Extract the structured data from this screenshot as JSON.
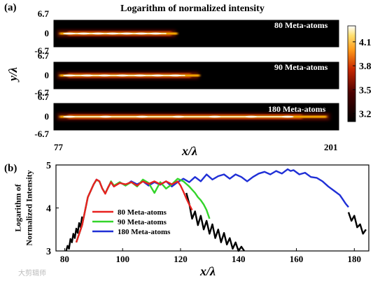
{
  "panel_a": {
    "label": "(a)",
    "title": "Logarithm of normalized intensity",
    "ylabel": "y/λ",
    "xlabel": "x/λ",
    "x_ticks": [
      "77",
      "201"
    ],
    "y_ticks": [
      "6.7",
      "0",
      "-6.7"
    ],
    "colorbar_ticks": [
      "4.1",
      "3.8",
      "3.5",
      "3.2"
    ],
    "strips": [
      {
        "label": "80 Meta-atoms",
        "x_end": 130
      },
      {
        "label": "90 Meta-atoms",
        "x_end": 140
      },
      {
        "label": "180 Meta-atoms",
        "x_end": 197
      }
    ]
  },
  "panel_b": {
    "label": "(b)",
    "ylabel_line1": "Logarithm of",
    "ylabel_line2": "Normalized Intensity",
    "xlabel": "x/λ",
    "watermark": "大剪辑师"
  },
  "colors": {
    "red": "#e8211f",
    "green": "#33d42a",
    "blue": "#1f2fd6",
    "black": "#000000"
  },
  "chart_data": [
    {
      "type": "heatmap",
      "title": "Logarithm of normalized intensity",
      "xlabel": "x/λ",
      "ylabel": "y/λ",
      "xlim": [
        77,
        201
      ],
      "ylim": [
        -6.7,
        6.7
      ],
      "colorbar_range": [
        3.1,
        4.3
      ],
      "colorbar_ticks": [
        4.1,
        3.8,
        3.5,
        3.2
      ],
      "panels": [
        "80 Meta-atoms",
        "90 Meta-atoms",
        "180 Meta-atoms"
      ]
    },
    {
      "type": "line",
      "xlabel": "x/λ",
      "ylabel": "Logarithm of Normalized Intensity",
      "xlim": [
        77,
        185
      ],
      "ylim": [
        3,
        5
      ],
      "xticks": [
        80,
        100,
        120,
        140,
        160,
        180
      ],
      "yticks": [
        3,
        4,
        5
      ],
      "legend": "center-left",
      "series": [
        {
          "name": "80 Meta-atoms",
          "color": "#e8211f",
          "x": [
            84,
            86,
            88,
            90,
            91,
            92,
            93,
            94,
            95,
            96,
            97,
            99,
            101,
            103,
            105,
            107,
            109,
            111,
            113,
            115,
            117,
            119,
            120,
            121,
            122,
            123,
            124
          ],
          "y": [
            3.2,
            3.6,
            4.25,
            4.55,
            4.66,
            4.62,
            4.45,
            4.33,
            4.48,
            4.6,
            4.5,
            4.58,
            4.55,
            4.6,
            4.52,
            4.62,
            4.56,
            4.62,
            4.55,
            4.62,
            4.55,
            4.62,
            4.52,
            4.38,
            4.22,
            4.08,
            3.95
          ]
        },
        {
          "name": "90 Meta-atoms",
          "color": "#33d42a",
          "x": [
            84,
            86,
            88,
            90,
            91,
            92,
            93,
            94,
            95,
            96,
            97,
            99,
            101,
            103,
            105,
            107,
            109,
            111,
            113,
            115,
            117,
            119,
            121,
            123,
            125,
            126,
            127,
            128,
            129,
            130
          ],
          "y": [
            3.2,
            3.6,
            4.25,
            4.55,
            4.65,
            4.62,
            4.45,
            4.34,
            4.47,
            4.62,
            4.52,
            4.6,
            4.52,
            4.6,
            4.5,
            4.66,
            4.58,
            4.35,
            4.6,
            4.45,
            4.55,
            4.68,
            4.62,
            4.5,
            4.35,
            4.25,
            4.18,
            4.08,
            3.95,
            3.75
          ]
        },
        {
          "name": "180 Meta-atoms",
          "color": "#1f2fd6",
          "x": [
            84,
            86,
            88,
            90,
            91,
            92,
            93,
            94,
            95,
            96,
            97,
            99,
            101,
            103,
            105,
            107,
            109,
            111,
            113,
            115,
            117,
            119,
            121,
            123,
            125,
            127,
            129,
            131,
            133,
            135,
            137,
            139,
            141,
            143,
            145,
            147,
            149,
            151,
            153,
            155,
            157,
            158,
            159,
            161,
            163,
            165,
            167,
            169,
            171,
            173,
            175,
            176,
            177,
            178
          ],
          "y": [
            3.2,
            3.6,
            4.25,
            4.55,
            4.66,
            4.62,
            4.45,
            4.34,
            4.48,
            4.6,
            4.5,
            4.6,
            4.52,
            4.62,
            4.55,
            4.62,
            4.52,
            4.6,
            4.54,
            4.62,
            4.5,
            4.6,
            4.68,
            4.6,
            4.72,
            4.62,
            4.78,
            4.66,
            4.74,
            4.78,
            4.68,
            4.78,
            4.72,
            4.62,
            4.72,
            4.8,
            4.84,
            4.78,
            4.86,
            4.8,
            4.9,
            4.86,
            4.88,
            4.78,
            4.82,
            4.72,
            4.7,
            4.62,
            4.5,
            4.4,
            4.3,
            4.2,
            4.1,
            4.02
          ]
        },
        {
          "name": "",
          "color": "#000000",
          "x": [
            80.5,
            81,
            81.5,
            82,
            82.5,
            83,
            83.5,
            84,
            84.5,
            85,
            85.5,
            86,
            122,
            123,
            124,
            125,
            126,
            127,
            128,
            129,
            130,
            131,
            132,
            133,
            134,
            135,
            136,
            137,
            138,
            139,
            140,
            141,
            142,
            178,
            179,
            180,
            181,
            182,
            183,
            184
          ],
          "y": [
            3.0,
            3.12,
            3.05,
            3.28,
            3.2,
            3.4,
            3.3,
            3.52,
            3.42,
            3.65,
            3.55,
            3.8,
            4.35,
            4.1,
            3.75,
            3.92,
            3.6,
            3.82,
            3.5,
            3.7,
            3.4,
            3.62,
            3.3,
            3.5,
            3.2,
            3.42,
            3.15,
            3.3,
            3.05,
            3.2,
            3.0,
            3.1,
            3.0,
            3.9,
            3.7,
            3.82,
            3.55,
            3.62,
            3.4,
            3.5
          ]
        }
      ]
    }
  ]
}
